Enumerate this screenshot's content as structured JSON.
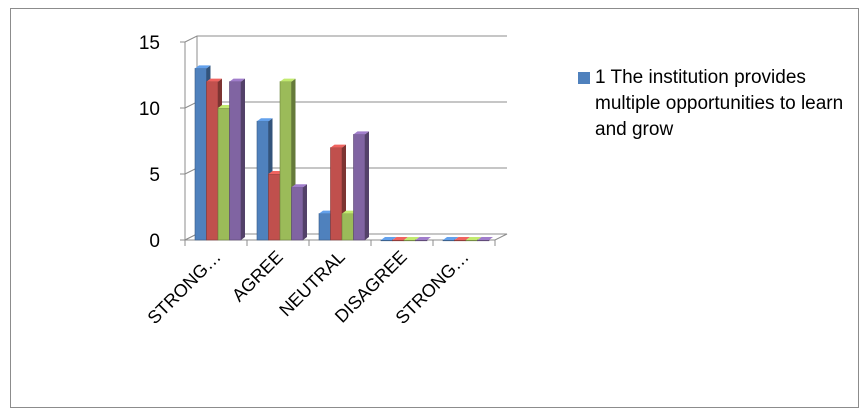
{
  "chart_data": {
    "type": "bar",
    "style": "3d-clustered-column",
    "categories": [
      "STRONG…",
      "AGREE",
      "NEUTRAL",
      "DISAGREE",
      "STRONG…"
    ],
    "series": [
      {
        "name": "1 The institution provides multiple opportunities to learn and grow",
        "color": "#4f81bd",
        "values": [
          13,
          9,
          2,
          0,
          0
        ]
      },
      {
        "name": "",
        "color": "#c0504d",
        "values": [
          12,
          5,
          7,
          0,
          0
        ]
      },
      {
        "name": "",
        "color": "#9bbb59",
        "values": [
          10,
          12,
          2,
          0,
          0
        ]
      },
      {
        "name": "",
        "color": "#8064a2",
        "values": [
          12,
          4,
          8,
          0,
          0
        ]
      }
    ],
    "y_ticks": [
      "0",
      "5",
      "10",
      "15"
    ],
    "ylim": [
      0,
      15
    ],
    "grid": true,
    "legend_position": "right",
    "legend_entries": [
      "1 The institution provides multiple opportunities to learn and grow"
    ]
  }
}
